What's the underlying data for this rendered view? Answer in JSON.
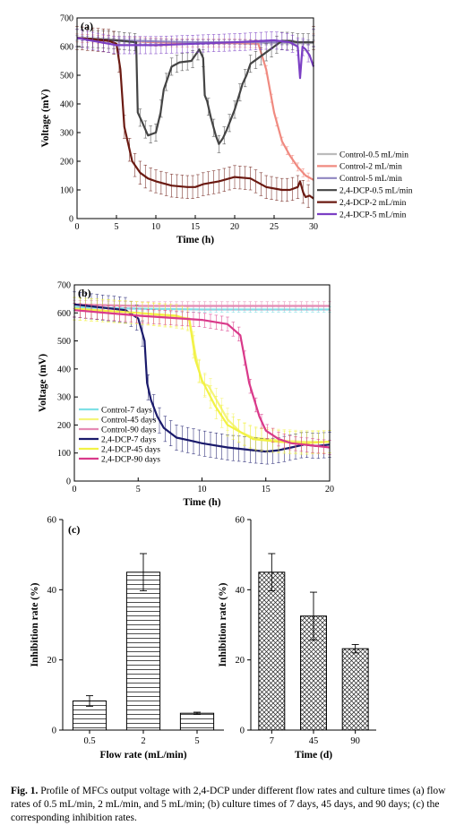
{
  "caption": {
    "label": "Fig. 1.",
    "text": "Profile of MFCs output voltage with 2,4-DCP under different flow rates and culture times (a) flow rates of 0.5 mL/min, 2 mL/min, and 5 mL/min; (b) culture times of 7 days, 45 days, and 90 days; (c) the corresponding inhibition rates."
  },
  "chart_data": [
    {
      "panel": "(a)",
      "type": "line",
      "xlabel": "Time (h)",
      "ylabel": "Voltage (mV)",
      "xlim": [
        0,
        30
      ],
      "ylim": [
        0,
        700
      ],
      "xticks": [
        0,
        5,
        10,
        15,
        20,
        25,
        30
      ],
      "yticks": [
        0,
        100,
        200,
        300,
        400,
        500,
        600,
        700
      ],
      "legend_position": "right",
      "series": [
        {
          "name": "Control-0.5 mL/min",
          "color": "#bbbbbb",
          "x": [
            0,
            5,
            10,
            15,
            20,
            25,
            30
          ],
          "y": [
            630,
            620,
            615,
            615,
            615,
            612,
            612
          ],
          "err": 8
        },
        {
          "name": "Control-2 mL/min",
          "color": "#f08a80",
          "x": [
            0,
            5,
            10,
            15,
            20,
            23,
            24,
            25,
            26,
            27,
            28,
            29,
            30
          ],
          "y": [
            630,
            622,
            615,
            612,
            612,
            610,
            520,
            370,
            270,
            220,
            180,
            150,
            135
          ],
          "err": 14
        },
        {
          "name": "Control-5 mL/min",
          "color": "#8f86c0",
          "x": [
            0,
            5,
            10,
            15,
            20,
            25,
            30
          ],
          "y": [
            630,
            622,
            618,
            615,
            615,
            615,
            615
          ],
          "err": 8
        },
        {
          "name": "2,4-DCP-0.5 mL/min",
          "color": "#444444",
          "x": [
            0,
            5,
            7.5,
            7.7,
            8.2,
            9,
            10,
            10.6,
            11,
            12,
            13,
            14.5,
            15.5,
            16,
            16.2,
            16.5,
            17,
            17.6,
            18,
            18.5,
            19,
            20,
            21,
            21.5,
            22,
            23,
            25,
            26,
            27,
            28,
            29,
            30
          ],
          "y": [
            630,
            622,
            615,
            370,
            340,
            290,
            300,
            370,
            450,
            530,
            545,
            550,
            590,
            560,
            430,
            410,
            350,
            290,
            260,
            280,
            310,
            380,
            470,
            500,
            540,
            560,
            600,
            620,
            620,
            615,
            615,
            615
          ],
          "err": 30
        },
        {
          "name": "2,4-DCP-2 mL/min",
          "color": "#6b1a12",
          "x": [
            0,
            4,
            5,
            5.5,
            6,
            7,
            8,
            9,
            10,
            12,
            14,
            15,
            16,
            18,
            20,
            22,
            24,
            26,
            27,
            28,
            28.3,
            28.7,
            29,
            29.5,
            30
          ],
          "y": [
            630,
            620,
            610,
            520,
            320,
            200,
            160,
            140,
            130,
            115,
            110,
            110,
            120,
            130,
            145,
            140,
            110,
            100,
            100,
            110,
            130,
            90,
            75,
            80,
            70
          ],
          "err": 40
        },
        {
          "name": "2,4-DCP-5 mL/min",
          "color": "#7b3fc4",
          "x": [
            0,
            5,
            10,
            15,
            20,
            25,
            27,
            28,
            28.3,
            28.6,
            29,
            29.5,
            30
          ],
          "y": [
            630,
            605,
            605,
            610,
            615,
            622,
            615,
            600,
            490,
            600,
            590,
            570,
            530
          ],
          "err": 30
        }
      ]
    },
    {
      "panel": "(b)",
      "type": "line",
      "xlabel": "Time (h)",
      "ylabel": "Voltage (mV)",
      "xlim": [
        0,
        20
      ],
      "ylim": [
        0,
        700
      ],
      "xticks": [
        0,
        5,
        10,
        15,
        20
      ],
      "yticks": [
        0,
        100,
        200,
        300,
        400,
        500,
        600,
        700
      ],
      "legend_position": "bottom-left",
      "series": [
        {
          "name": "Control-7 days",
          "color": "#7fe0e6",
          "x": [
            0,
            5,
            10,
            15,
            20
          ],
          "y": [
            620,
            615,
            612,
            612,
            612
          ],
          "err": 10
        },
        {
          "name": "Control-45 days",
          "color": "#f5f57a",
          "x": [
            0,
            5,
            9,
            9.5,
            10,
            10.5,
            11,
            12,
            13,
            14,
            16,
            18,
            20
          ],
          "y": [
            615,
            600,
            580,
            450,
            350,
            340,
            300,
            220,
            175,
            155,
            145,
            140,
            140
          ],
          "err": 40
        },
        {
          "name": "Control-90 days",
          "color": "#e58bb4",
          "x": [
            0,
            5,
            10,
            15,
            20
          ],
          "y": [
            630,
            625,
            625,
            625,
            625
          ],
          "err": 15
        },
        {
          "name": "2,4-DCP-7 days",
          "color": "#1a1a6b",
          "x": [
            0,
            4,
            5,
            5.5,
            5.7,
            6,
            6.5,
            7,
            8,
            9,
            10,
            12,
            14,
            15,
            16,
            17,
            18,
            19,
            20
          ],
          "y": [
            630,
            610,
            580,
            500,
            350,
            290,
            230,
            190,
            155,
            145,
            135,
            120,
            110,
            105,
            110,
            120,
            130,
            125,
            130
          ],
          "err": 45
        },
        {
          "name": "2,4-DCP-45 days",
          "color": "#f2f244",
          "x": [
            0,
            5,
            8,
            9,
            9.5,
            10,
            11,
            12,
            14,
            16,
            18,
            20
          ],
          "y": [
            615,
            600,
            590,
            575,
            430,
            360,
            270,
            200,
            150,
            140,
            135,
            140
          ],
          "err": 40
        },
        {
          "name": "2,4-DCP-90 days",
          "color": "#d9398a",
          "x": [
            0,
            5,
            10,
            12,
            13,
            13.7,
            14.1,
            14.5,
            15,
            16,
            17,
            18,
            19,
            20
          ],
          "y": [
            610,
            590,
            575,
            560,
            520,
            350,
            290,
            230,
            180,
            150,
            135,
            130,
            125,
            120
          ],
          "err": 25
        }
      ]
    },
    {
      "panel": "(c)",
      "type": "bar",
      "pattern": "horizontal-lines",
      "xlabel": "Flow rate (mL/min)",
      "ylabel": "Inhibition rate (%)",
      "categories": [
        "0.5",
        "2",
        "5"
      ],
      "values": [
        8.3,
        45,
        4.8
      ],
      "errors": [
        1.5,
        5.3,
        0.3
      ],
      "ylim": [
        0,
        60
      ],
      "yticks": [
        0,
        20,
        40,
        60
      ]
    },
    {
      "panel": "",
      "type": "bar",
      "pattern": "crosshatch",
      "xlabel": "Time (d)",
      "ylabel": "Inhibition rate (%)",
      "categories": [
        "7",
        "45",
        "90"
      ],
      "values": [
        45,
        32.5,
        23.2
      ],
      "errors": [
        5.3,
        6.8,
        1.2
      ],
      "ylim": [
        0,
        60
      ],
      "yticks": [
        0,
        20,
        40,
        60
      ]
    }
  ]
}
